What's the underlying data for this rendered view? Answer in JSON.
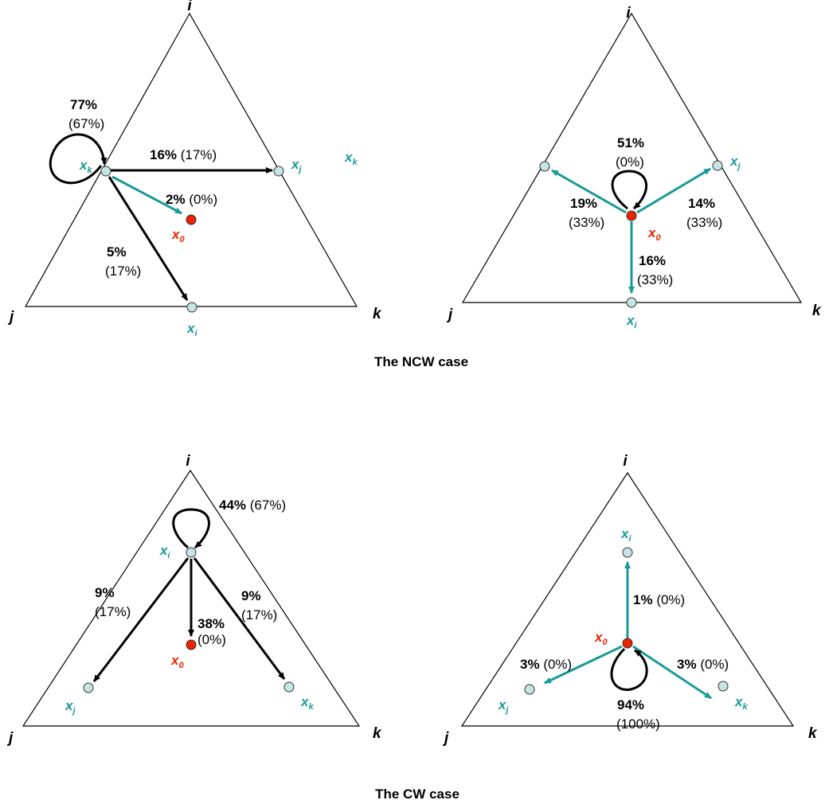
{
  "vertices": {
    "i": "i",
    "j": "j",
    "k": "k"
  },
  "nodes": {
    "x": "x",
    "i": "i",
    "j": "j",
    "k": "k",
    "zero": "0"
  },
  "captions": {
    "ncw": "The NCW case",
    "cw": "The CW case"
  },
  "colors": {
    "teal": "#1a9a96",
    "red": "#ee2200",
    "point_fill": "#c7e4e4"
  },
  "panel1": {
    "self_loop": {
      "main": "77%",
      "paren": "(67%)"
    },
    "to_xj": {
      "main": "16%",
      "paren": "(17%)"
    },
    "to_x0": {
      "main": "2%",
      "paren": "(0%)"
    },
    "to_xi": {
      "main": "5%",
      "paren": "(17%)"
    }
  },
  "panel2": {
    "self_loop": {
      "main": "51%",
      "paren": "(0%)"
    },
    "to_left": {
      "main": "19%",
      "paren": "(33%)"
    },
    "to_xj": {
      "main": "14%",
      "paren": "(33%)"
    },
    "to_xi": {
      "main": "16%",
      "paren": "(33%)"
    }
  },
  "panel3": {
    "self_loop": {
      "main": "44%",
      "paren": "(67%)"
    },
    "to_xj": {
      "main": "9%",
      "paren": "(17%)"
    },
    "to_xk": {
      "main": "9%",
      "paren": "(17%)"
    },
    "to_x0": {
      "main": "38%",
      "paren": "(0%)"
    }
  },
  "panel4": {
    "to_xi": {
      "main": "1%",
      "paren": "(0%)"
    },
    "to_xj": {
      "main": "3%",
      "paren": "(0%)"
    },
    "to_xk": {
      "main": "3%",
      "paren": "(0%)"
    },
    "self_loop": {
      "main": "94%",
      "paren": "(100%)"
    }
  }
}
